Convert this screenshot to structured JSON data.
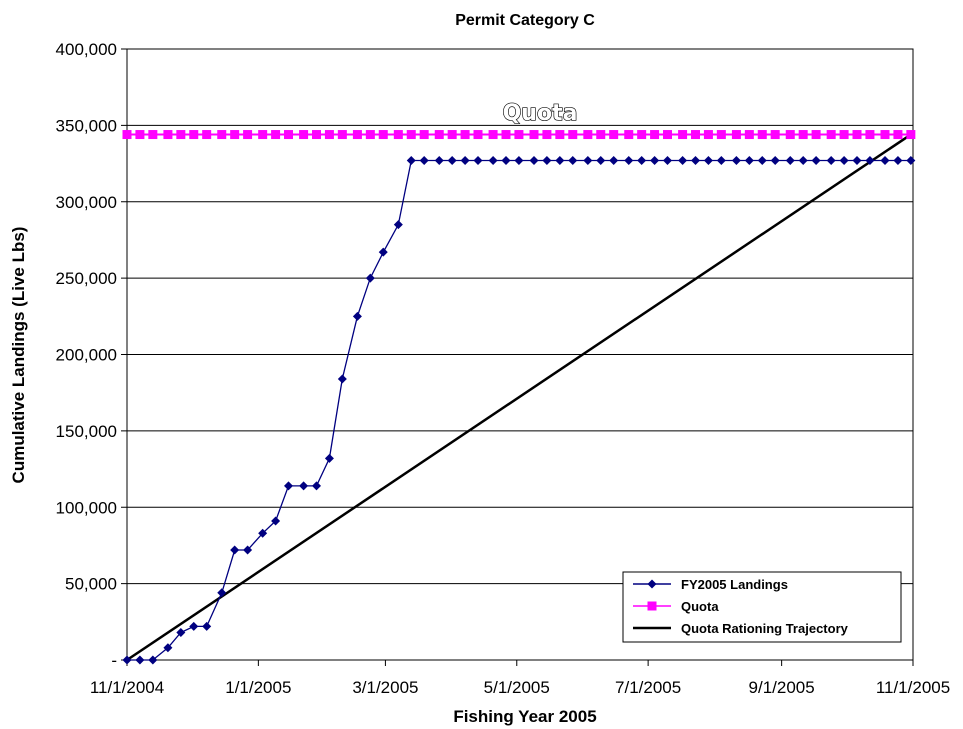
{
  "chart_data": {
    "type": "line",
    "title": "Permit Category C",
    "xlabel": "Fishing Year 2005",
    "ylabel": "Cumulative Landings (Live Lbs)",
    "x_axis_type": "date",
    "xlim": [
      "11/1/2004",
      "11/1/2005"
    ],
    "x_tick_labels": [
      "11/1/2004",
      "1/1/2005",
      "3/1/2005",
      "5/1/2005",
      "7/1/2005",
      "9/1/2005",
      "11/1/2005"
    ],
    "ylim": [
      0,
      400000
    ],
    "y_tick_labels": [
      "-",
      "50,000",
      "100,000",
      "150,000",
      "200,000",
      "250,000",
      "300,000",
      "350,000",
      "400,000"
    ],
    "y_gridlines": true,
    "legend_position": "bottom-right",
    "annotation": "Quota",
    "series": [
      {
        "name": "FY2005 Landings",
        "color": "#000080",
        "marker": "diamond",
        "points": [
          [
            "11/1/2004",
            0
          ],
          [
            "11/7/2004",
            0
          ],
          [
            "11/13/2004",
            0
          ],
          [
            "11/20/2004",
            8000
          ],
          [
            "11/26/2004",
            18000
          ],
          [
            "12/2/2004",
            22000
          ],
          [
            "12/8/2004",
            22000
          ],
          [
            "12/15/2004",
            44000
          ],
          [
            "12/21/2004",
            72000
          ],
          [
            "12/27/2004",
            72000
          ],
          [
            "1/3/2005",
            83000
          ],
          [
            "1/9/2005",
            91000
          ],
          [
            "1/15/2005",
            114000
          ],
          [
            "1/22/2005",
            114000
          ],
          [
            "1/28/2005",
            114000
          ],
          [
            "2/3/2005",
            132000
          ],
          [
            "2/9/2005",
            184000
          ],
          [
            "2/16/2005",
            225000
          ],
          [
            "2/22/2005",
            250000
          ],
          [
            "2/28/2005",
            267000
          ],
          [
            "3/7/2005",
            285000
          ],
          [
            "3/13/2005",
            327000
          ],
          [
            "3/19/2005",
            327000
          ],
          [
            "3/26/2005",
            327000
          ],
          [
            "4/1/2005",
            327000
          ],
          [
            "4/7/2005",
            327000
          ],
          [
            "4/13/2005",
            327000
          ],
          [
            "4/20/2005",
            327000
          ],
          [
            "4/26/2005",
            327000
          ],
          [
            "5/2/2005",
            327000
          ],
          [
            "5/9/2005",
            327000
          ],
          [
            "5/15/2005",
            327000
          ],
          [
            "5/21/2005",
            327000
          ],
          [
            "5/27/2005",
            327000
          ],
          [
            "6/3/2005",
            327000
          ],
          [
            "6/9/2005",
            327000
          ],
          [
            "6/15/2005",
            327000
          ],
          [
            "6/22/2005",
            327000
          ],
          [
            "6/28/2005",
            327000
          ],
          [
            "7/4/2005",
            327000
          ],
          [
            "7/10/2005",
            327000
          ],
          [
            "7/17/2005",
            327000
          ],
          [
            "7/23/2005",
            327000
          ],
          [
            "7/29/2005",
            327000
          ],
          [
            "8/4/2005",
            327000
          ],
          [
            "8/11/2005",
            327000
          ],
          [
            "8/17/2005",
            327000
          ],
          [
            "8/23/2005",
            327000
          ],
          [
            "8/29/2005",
            327000
          ],
          [
            "9/5/2005",
            327000
          ],
          [
            "9/11/2005",
            327000
          ],
          [
            "9/17/2005",
            327000
          ],
          [
            "9/24/2005",
            327000
          ],
          [
            "9/30/2005",
            327000
          ],
          [
            "10/6/2005",
            327000
          ],
          [
            "10/12/2005",
            327000
          ],
          [
            "10/19/2005",
            327000
          ],
          [
            "10/25/2005",
            327000
          ],
          [
            "10/31/2005",
            327000
          ]
        ]
      },
      {
        "name": "Quota",
        "color": "#ff00ff",
        "marker": "square",
        "constant_value": 344000
      },
      {
        "name": "Quota Rationing Trajectory",
        "color": "#000000",
        "marker": "none",
        "points": [
          [
            "11/1/2004",
            0
          ],
          [
            "10/31/2005",
            344000
          ]
        ]
      }
    ]
  }
}
